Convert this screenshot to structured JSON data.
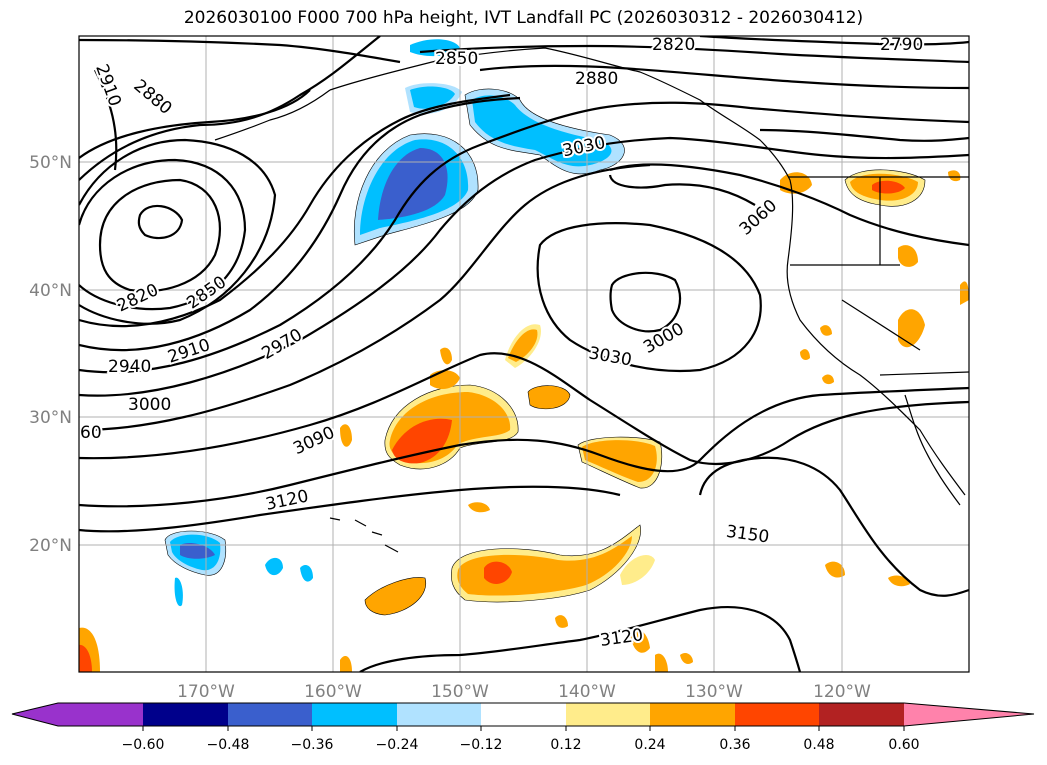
{
  "title": "2026030100 F000 700 hPa height, IVT Landfall PC (2026030312 - 2026030412)",
  "map": {
    "longitude_labels": [
      "170°W",
      "160°W",
      "150°W",
      "140°W",
      "130°W",
      "120°W"
    ],
    "latitude_labels": [
      "50°N",
      "40°N",
      "30°N",
      "20°N"
    ],
    "grid": true,
    "contour_labels": [
      "2910",
      "2880",
      "2850",
      "2820",
      "2790",
      "2880",
      "3030",
      "3060",
      "2820",
      "2850",
      "3000",
      "3030",
      "2910",
      "2970",
      "2940",
      "3000",
      "60",
      "3090",
      "3120",
      "3150",
      "3120"
    ]
  },
  "colorbar": {
    "tick_labels": [
      "−0.60",
      "−0.48",
      "−0.36",
      "−0.24",
      "−0.12",
      "0.12",
      "0.24",
      "0.36",
      "0.48",
      "0.60"
    ],
    "colors": [
      "#9932cc",
      "#00008b",
      "#3a5fcd",
      "#00bfff",
      "#b0e2ff",
      "#ffffff",
      "#ffec8b",
      "#ffa500",
      "#ff4500",
      "#b22222",
      "#ff82ab"
    ],
    "extend": "both"
  }
}
